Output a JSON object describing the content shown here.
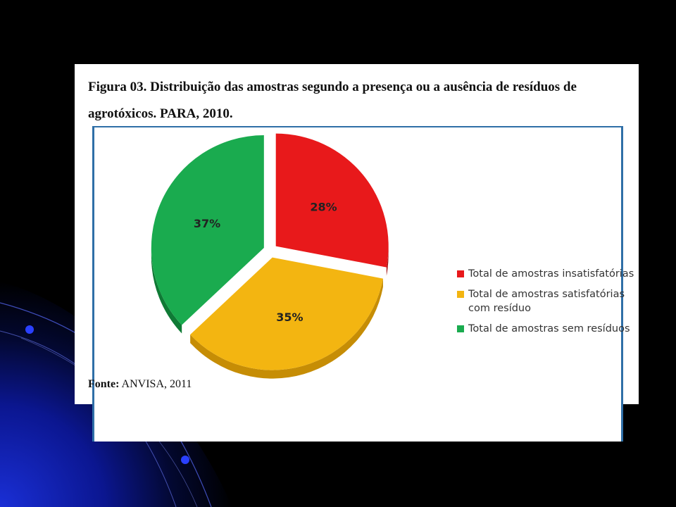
{
  "figure": {
    "title": "Figura 03. Distribuição das amostras segundo a presença ou a ausência de resíduos de agrotóxicos. PARA, 2010.",
    "source_label": "Fonte:",
    "source_text": " ANVISA, 2011"
  },
  "chart_data": {
    "type": "pie",
    "title": "Figura 03. Distribuição das amostras segundo a presença ou a ausência de resíduos de agrotóxicos. PARA, 2010.",
    "categories": [
      "Total de amostras insatisfatórias",
      "Total de amostras satisfatórias com resíduo",
      "Total de amostras sem resíduos"
    ],
    "values": [
      28,
      35,
      37
    ],
    "value_labels": [
      "28%",
      "35%",
      "37%"
    ],
    "colors": [
      "#e8191b",
      "#f3b511",
      "#1aab4f"
    ],
    "legend_position": "right",
    "exploded": true,
    "three_d": true
  },
  "colors": {
    "slide_background": "#000000",
    "slide_accent": "#1426b8",
    "frame_border": "#2f6fa7"
  }
}
